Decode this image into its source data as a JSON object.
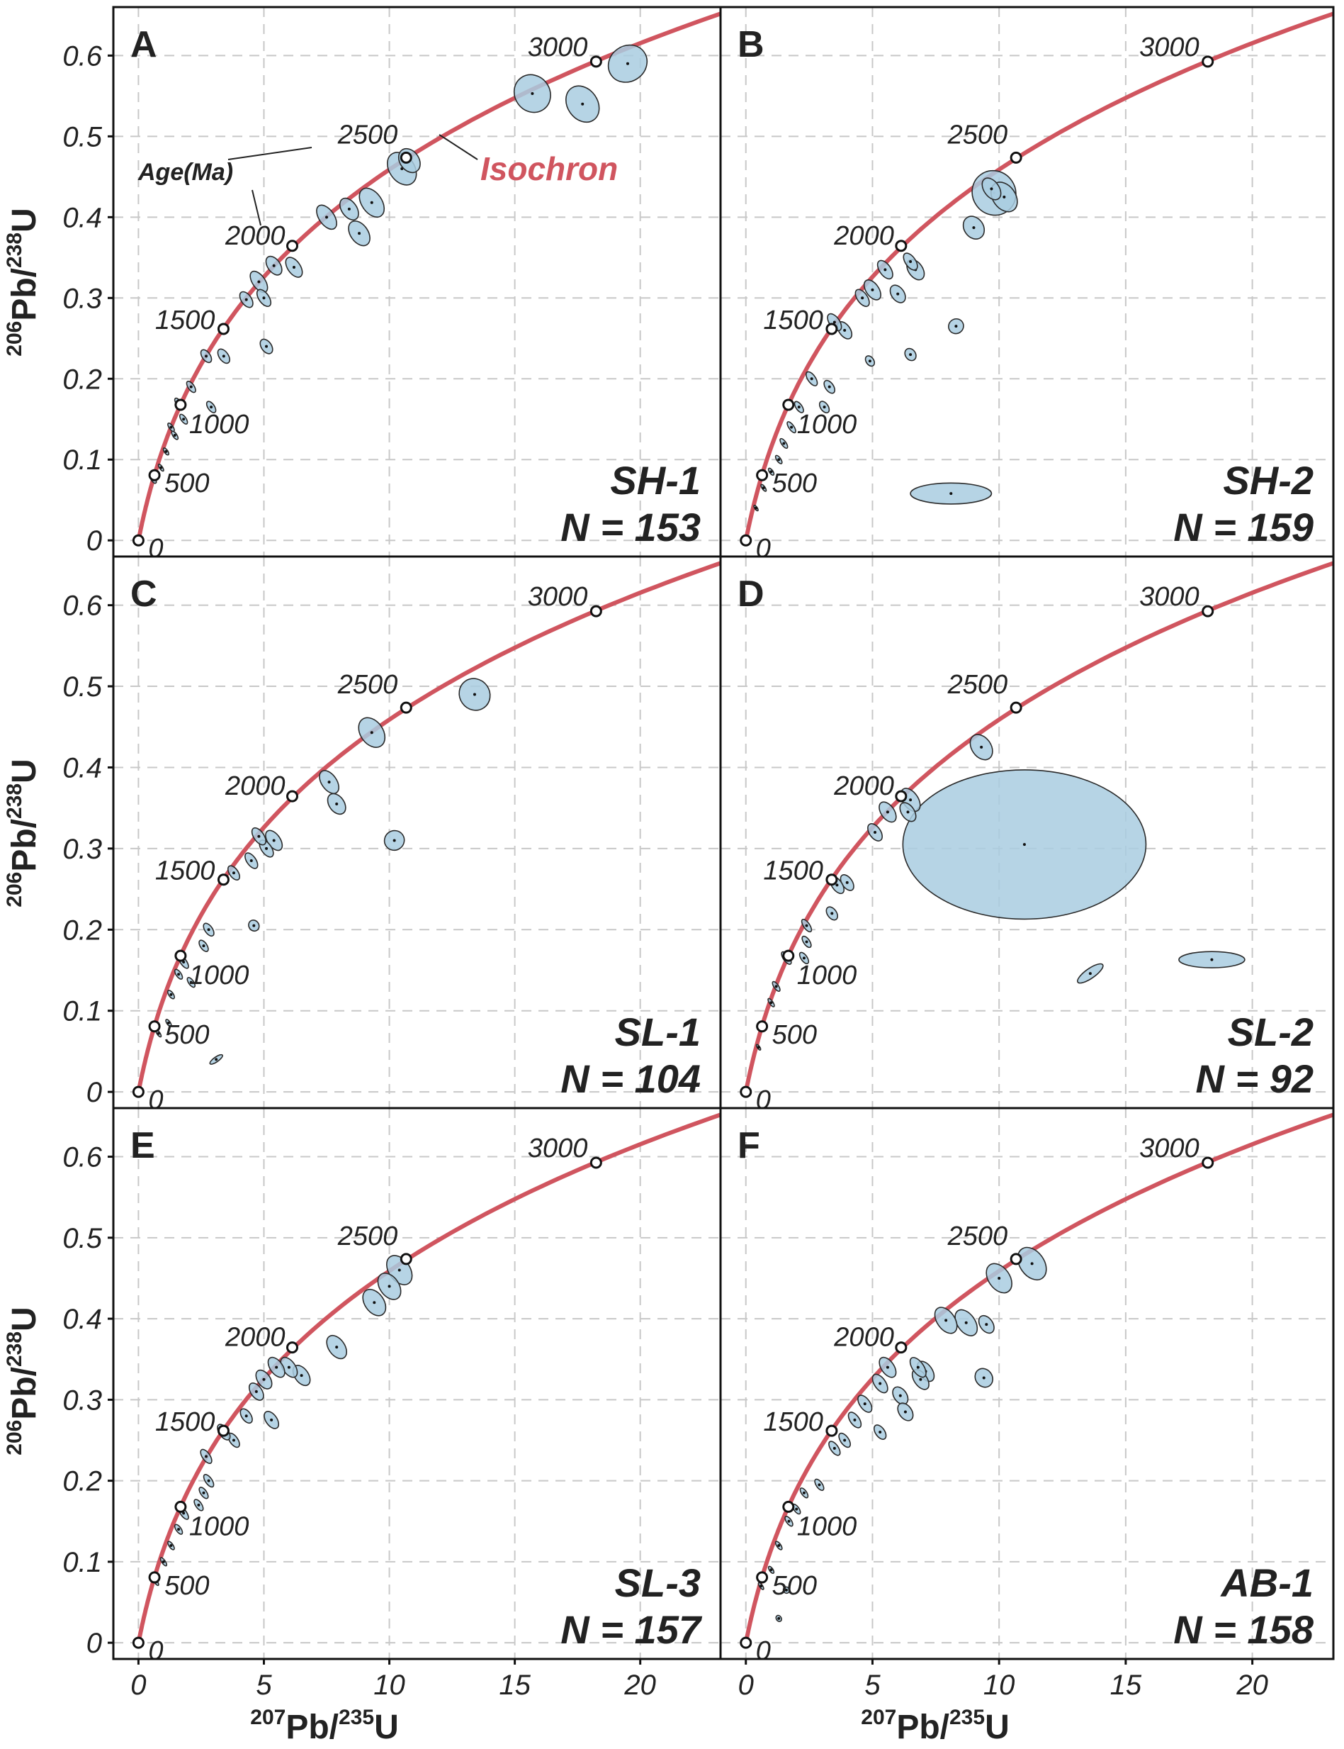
{
  "colors": {
    "isochron": "#d0555f",
    "ellipse_fill": "#a9cde0",
    "ellipse_stroke": "#2a2a2a",
    "grid": "#c8c8c8"
  },
  "x_axis_title": {
    "pre": "207",
    "mid": "Pb/",
    "sup": "235",
    "post": "U"
  },
  "y_axis_title": {
    "pre": "206",
    "mid": "Pb/",
    "sup": "238",
    "post": "U"
  },
  "annotations": {
    "isochron_label": "Isochron",
    "age_label": "Age(Ma)"
  },
  "chart_data": {
    "type": "scatter",
    "subtype": "concordia-diagram",
    "xlim": [
      -1,
      23.2
    ],
    "ylim": [
      -0.02,
      0.66
    ],
    "x_ticks": [
      0,
      5,
      10,
      15,
      20
    ],
    "x_tick_labels": [
      "0",
      "5",
      "10",
      "15",
      "20"
    ],
    "y_ticks": [
      0,
      0.1,
      0.2,
      0.3,
      0.4,
      0.5,
      0.6
    ],
    "y_tick_labels": [
      "0",
      "0.1",
      "0.2",
      "0.3",
      "0.4",
      "0.5",
      "0.6"
    ],
    "grid": true,
    "concordia_ages": [
      {
        "label": "0",
        "x": 0,
        "y": 0
      },
      {
        "label": "500",
        "x": 0.64,
        "y": 0.0807
      },
      {
        "label": "1000",
        "x": 1.68,
        "y": 0.1678
      },
      {
        "label": "1500",
        "x": 3.39,
        "y": 0.2617
      },
      {
        "label": "2000",
        "x": 6.13,
        "y": 0.3645
      },
      {
        "label": "2500",
        "x": 10.67,
        "y": 0.4737
      },
      {
        "label": "3000",
        "x": 18.24,
        "y": 0.5926
      }
    ],
    "panels": [
      {
        "letter": "A",
        "sample": "SH-1",
        "n_label": "N = 153",
        "ellipses": [
          [
            19.5,
            0.59,
            0.8,
            0.022
          ],
          [
            15.7,
            0.553,
            0.7,
            0.024
          ],
          [
            17.7,
            0.54,
            0.6,
            0.024
          ],
          [
            10.5,
            0.46,
            0.5,
            0.022
          ],
          [
            10.8,
            0.47,
            0.38,
            0.016
          ],
          [
            9.3,
            0.418,
            0.4,
            0.02
          ],
          [
            8.8,
            0.38,
            0.35,
            0.017
          ],
          [
            8.4,
            0.41,
            0.3,
            0.015
          ],
          [
            7.5,
            0.4,
            0.3,
            0.017
          ],
          [
            6.2,
            0.338,
            0.25,
            0.014
          ],
          [
            5.4,
            0.34,
            0.25,
            0.013
          ],
          [
            4.8,
            0.32,
            0.25,
            0.015
          ],
          [
            5.0,
            0.3,
            0.2,
            0.012
          ],
          [
            4.3,
            0.298,
            0.2,
            0.011
          ],
          [
            5.1,
            0.24,
            0.2,
            0.01
          ],
          [
            3.4,
            0.228,
            0.18,
            0.01
          ],
          [
            2.7,
            0.228,
            0.16,
            0.009
          ],
          [
            2.9,
            0.165,
            0.13,
            0.008
          ],
          [
            2.1,
            0.19,
            0.12,
            0.008
          ],
          [
            1.8,
            0.15,
            0.1,
            0.007
          ],
          [
            1.6,
            0.17,
            0.1,
            0.007
          ],
          [
            1.45,
            0.13,
            0.08,
            0.006
          ],
          [
            1.3,
            0.14,
            0.08,
            0.006
          ],
          [
            1.1,
            0.11,
            0.07,
            0.005
          ],
          [
            0.9,
            0.09,
            0.06,
            0.005
          ],
          [
            0.6,
            0.075,
            0.08,
            0.005
          ]
        ]
      },
      {
        "letter": "B",
        "sample": "SH-2",
        "n_label": "N = 159",
        "ellipses": [
          [
            9.8,
            0.43,
            0.85,
            0.028
          ],
          [
            10.2,
            0.425,
            0.45,
            0.02
          ],
          [
            9.7,
            0.435,
            0.3,
            0.015
          ],
          [
            9.0,
            0.387,
            0.38,
            0.015
          ],
          [
            8.3,
            0.265,
            0.3,
            0.009
          ],
          [
            8.1,
            0.058,
            1.6,
            0.013
          ],
          [
            6.7,
            0.335,
            0.28,
            0.014
          ],
          [
            6.5,
            0.345,
            0.2,
            0.012
          ],
          [
            6.0,
            0.305,
            0.25,
            0.012
          ],
          [
            6.5,
            0.23,
            0.2,
            0.008
          ],
          [
            5.5,
            0.335,
            0.22,
            0.013
          ],
          [
            5.0,
            0.31,
            0.25,
            0.014
          ],
          [
            4.6,
            0.3,
            0.2,
            0.012
          ],
          [
            4.9,
            0.222,
            0.15,
            0.007
          ],
          [
            3.9,
            0.26,
            0.22,
            0.012
          ],
          [
            3.5,
            0.27,
            0.2,
            0.012
          ],
          [
            3.3,
            0.19,
            0.16,
            0.009
          ],
          [
            3.1,
            0.165,
            0.15,
            0.008
          ],
          [
            2.6,
            0.2,
            0.15,
            0.01
          ],
          [
            2.1,
            0.165,
            0.12,
            0.008
          ],
          [
            1.8,
            0.14,
            0.1,
            0.008
          ],
          [
            1.5,
            0.12,
            0.09,
            0.007
          ],
          [
            1.3,
            0.1,
            0.08,
            0.006
          ],
          [
            1.0,
            0.085,
            0.07,
            0.005
          ],
          [
            0.7,
            0.065,
            0.06,
            0.005
          ],
          [
            0.4,
            0.04,
            0.05,
            0.004
          ]
        ]
      },
      {
        "letter": "C",
        "sample": "SL-1",
        "n_label": "N = 104",
        "ellipses": [
          [
            13.4,
            0.49,
            0.6,
            0.02
          ],
          [
            9.3,
            0.443,
            0.45,
            0.02
          ],
          [
            10.2,
            0.31,
            0.4,
            0.012
          ],
          [
            7.6,
            0.382,
            0.3,
            0.016
          ],
          [
            7.9,
            0.355,
            0.3,
            0.014
          ],
          [
            5.4,
            0.31,
            0.25,
            0.014
          ],
          [
            5.1,
            0.3,
            0.2,
            0.012
          ],
          [
            4.8,
            0.315,
            0.2,
            0.012
          ],
          [
            4.5,
            0.285,
            0.18,
            0.011
          ],
          [
            4.6,
            0.205,
            0.2,
            0.007
          ],
          [
            3.8,
            0.27,
            0.17,
            0.01
          ],
          [
            2.8,
            0.2,
            0.15,
            0.009
          ],
          [
            2.6,
            0.18,
            0.13,
            0.008
          ],
          [
            2.1,
            0.135,
            0.1,
            0.007
          ],
          [
            1.8,
            0.16,
            0.12,
            0.009
          ],
          [
            1.6,
            0.145,
            0.1,
            0.007
          ],
          [
            1.3,
            0.12,
            0.09,
            0.006
          ],
          [
            1.2,
            0.085,
            0.07,
            0.005
          ],
          [
            3.1,
            0.04,
            0.3,
            0.003
          ],
          [
            0.8,
            0.072,
            0.06,
            0.005
          ]
        ]
      },
      {
        "letter": "D",
        "sample": "SL-2",
        "n_label": "N = 92",
        "ellipses": [
          [
            11.0,
            0.305,
            4.8,
            0.092
          ],
          [
            18.4,
            0.163,
            1.3,
            0.01
          ],
          [
            13.6,
            0.146,
            0.6,
            0.006
          ],
          [
            9.3,
            0.425,
            0.38,
            0.017
          ],
          [
            6.5,
            0.36,
            0.3,
            0.016
          ],
          [
            6.4,
            0.345,
            0.25,
            0.013
          ],
          [
            5.6,
            0.345,
            0.26,
            0.014
          ],
          [
            5.1,
            0.32,
            0.22,
            0.012
          ],
          [
            4.0,
            0.258,
            0.2,
            0.011
          ],
          [
            3.6,
            0.255,
            0.2,
            0.012
          ],
          [
            3.4,
            0.22,
            0.18,
            0.009
          ],
          [
            2.4,
            0.205,
            0.12,
            0.009
          ],
          [
            2.4,
            0.185,
            0.12,
            0.008
          ],
          [
            2.3,
            0.165,
            0.12,
            0.008
          ],
          [
            1.6,
            0.165,
            0.12,
            0.009
          ],
          [
            1.2,
            0.13,
            0.09,
            0.007
          ],
          [
            1.0,
            0.11,
            0.07,
            0.006
          ],
          [
            0.7,
            0.08,
            0.06,
            0.005
          ],
          [
            0.5,
            0.055,
            0.05,
            0.004
          ]
        ]
      },
      {
        "letter": "E",
        "sample": "SL-3",
        "n_label": "N = 157",
        "ellipses": [
          [
            10.4,
            0.46,
            0.42,
            0.02
          ],
          [
            10.0,
            0.44,
            0.38,
            0.018
          ],
          [
            9.4,
            0.42,
            0.38,
            0.018
          ],
          [
            7.9,
            0.365,
            0.32,
            0.016
          ],
          [
            6.5,
            0.33,
            0.27,
            0.014
          ],
          [
            6.0,
            0.34,
            0.25,
            0.014
          ],
          [
            5.5,
            0.34,
            0.25,
            0.014
          ],
          [
            5.0,
            0.325,
            0.25,
            0.013
          ],
          [
            4.7,
            0.31,
            0.22,
            0.012
          ],
          [
            5.3,
            0.275,
            0.22,
            0.012
          ],
          [
            4.3,
            0.28,
            0.18,
            0.01
          ],
          [
            3.8,
            0.25,
            0.16,
            0.01
          ],
          [
            3.4,
            0.26,
            0.18,
            0.011
          ],
          [
            2.7,
            0.23,
            0.15,
            0.01
          ],
          [
            2.8,
            0.2,
            0.13,
            0.009
          ],
          [
            2.6,
            0.185,
            0.12,
            0.008
          ],
          [
            2.4,
            0.17,
            0.12,
            0.008
          ],
          [
            1.8,
            0.16,
            0.12,
            0.009
          ],
          [
            1.6,
            0.14,
            0.1,
            0.007
          ],
          [
            1.3,
            0.12,
            0.08,
            0.006
          ],
          [
            1.0,
            0.1,
            0.07,
            0.006
          ],
          [
            0.7,
            0.075,
            0.06,
            0.005
          ]
        ]
      },
      {
        "letter": "F",
        "sample": "AB-1",
        "n_label": "N = 158",
        "ellipses": [
          [
            11.3,
            0.468,
            0.48,
            0.022
          ],
          [
            10.0,
            0.45,
            0.42,
            0.02
          ],
          [
            9.5,
            0.393,
            0.25,
            0.012
          ],
          [
            9.4,
            0.327,
            0.33,
            0.012
          ],
          [
            8.7,
            0.395,
            0.35,
            0.018
          ],
          [
            7.9,
            0.398,
            0.35,
            0.018
          ],
          [
            7.1,
            0.335,
            0.26,
            0.014
          ],
          [
            6.9,
            0.325,
            0.25,
            0.014
          ],
          [
            6.8,
            0.34,
            0.22,
            0.014
          ],
          [
            6.1,
            0.305,
            0.25,
            0.012
          ],
          [
            6.3,
            0.285,
            0.25,
            0.012
          ],
          [
            5.6,
            0.34,
            0.25,
            0.014
          ],
          [
            5.3,
            0.32,
            0.22,
            0.013
          ],
          [
            5.3,
            0.26,
            0.18,
            0.01
          ],
          [
            4.7,
            0.295,
            0.2,
            0.012
          ],
          [
            4.3,
            0.275,
            0.18,
            0.011
          ],
          [
            3.9,
            0.25,
            0.16,
            0.01
          ],
          [
            3.5,
            0.24,
            0.15,
            0.01
          ],
          [
            2.9,
            0.195,
            0.12,
            0.008
          ],
          [
            2.3,
            0.185,
            0.1,
            0.007
          ],
          [
            2.0,
            0.165,
            0.1,
            0.007
          ],
          [
            1.7,
            0.15,
            0.1,
            0.007
          ],
          [
            1.3,
            0.12,
            0.08,
            0.006
          ],
          [
            1.6,
            0.065,
            0.12,
            0.004
          ],
          [
            1.3,
            0.03,
            0.1,
            0.004
          ],
          [
            1.0,
            0.09,
            0.07,
            0.005
          ],
          [
            0.6,
            0.07,
            0.06,
            0.005
          ]
        ]
      }
    ]
  }
}
